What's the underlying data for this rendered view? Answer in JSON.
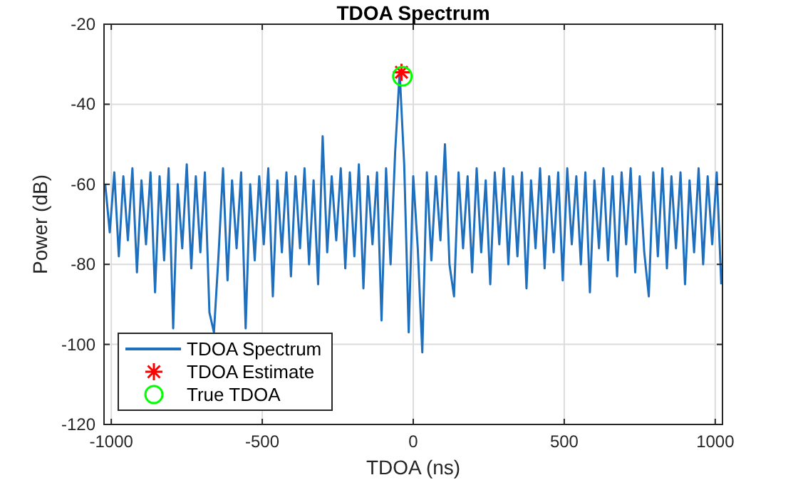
{
  "chart_data": {
    "type": "line",
    "title": "TDOA Spectrum",
    "xlabel": "TDOA (ns)",
    "ylabel": "Power (dB)",
    "xlim": [
      -1024,
      1024
    ],
    "ylim": [
      -120,
      -20
    ],
    "xticks": [
      -1000,
      -500,
      0,
      500,
      1000
    ],
    "yticks": [
      -120,
      -100,
      -80,
      -60,
      -40,
      -20
    ],
    "grid": true,
    "legend": "bottom left",
    "series": [
      {
        "name": "TDOA Spectrum",
        "color": "#1f6fbf",
        "marker": "none",
        "line_style": "solid",
        "x": [
          -1020,
          -1005,
          -990,
          -975,
          -960,
          -945,
          -930,
          -915,
          -900,
          -885,
          -870,
          -855,
          -840,
          -825,
          -810,
          -795,
          -780,
          -765,
          -750,
          -735,
          -720,
          -705,
          -690,
          -675,
          -660,
          -645,
          -630,
          -615,
          -600,
          -585,
          -570,
          -555,
          -540,
          -525,
          -510,
          -495,
          -480,
          -465,
          -450,
          -435,
          -420,
          -405,
          -390,
          -375,
          -360,
          -345,
          -330,
          -315,
          -300,
          -285,
          -270,
          -255,
          -240,
          -225,
          -210,
          -195,
          -180,
          -165,
          -150,
          -135,
          -120,
          -105,
          -90,
          -75,
          -60,
          -45,
          -30,
          -15,
          0,
          15,
          30,
          45,
          60,
          75,
          90,
          105,
          120,
          135,
          150,
          165,
          180,
          195,
          210,
          225,
          240,
          255,
          270,
          285,
          300,
          315,
          330,
          345,
          360,
          375,
          390,
          405,
          420,
          435,
          450,
          465,
          480,
          495,
          510,
          525,
          540,
          555,
          570,
          585,
          600,
          615,
          630,
          645,
          660,
          675,
          690,
          705,
          720,
          735,
          750,
          765,
          780,
          795,
          810,
          825,
          840,
          855,
          870,
          885,
          900,
          915,
          930,
          945,
          960,
          975,
          990,
          1005,
          1020
        ],
        "values": [
          -60,
          -72,
          -57,
          -78,
          -58,
          -74,
          -56,
          -82,
          -59,
          -75,
          -57,
          -87,
          -58,
          -79,
          -56,
          -96,
          -60,
          -76,
          -55,
          -81,
          -58,
          -77,
          -57,
          -92,
          -97,
          -78,
          -56,
          -84,
          -59,
          -76,
          -57,
          -96,
          -60,
          -79,
          -58,
          -75,
          -56,
          -88,
          -59,
          -77,
          -57,
          -83,
          -58,
          -76,
          -56,
          -80,
          -59,
          -85,
          -48,
          -77,
          -58,
          -74,
          -56,
          -81,
          -57,
          -78,
          -55,
          -86,
          -58,
          -75,
          -57,
          -94,
          -56,
          -80,
          -52,
          -32,
          -55,
          -97,
          -58,
          -76,
          -102,
          -57,
          -79,
          -58,
          -74,
          -50,
          -80,
          -88,
          -57,
          -76,
          -58,
          -82,
          -56,
          -77,
          -59,
          -85,
          -57,
          -75,
          -56,
          -80,
          -58,
          -78,
          -57,
          -86,
          -59,
          -76,
          -56,
          -81,
          -58,
          -77,
          -57,
          -84,
          -56,
          -75,
          -58,
          -80,
          -57,
          -87,
          -59,
          -76,
          -56,
          -79,
          -58,
          -83,
          -57,
          -75,
          -56,
          -82,
          -58,
          -77,
          -88,
          -57,
          -78,
          -56,
          -81,
          -58,
          -76,
          -57,
          -85,
          -59,
          -77,
          -56,
          -80,
          -58,
          -75,
          -57,
          -85
        ]
      },
      {
        "name": "TDOA Estimate",
        "type": "scatter",
        "color": "#ff0000",
        "marker": "cross",
        "x": [
          -39
        ],
        "values": [
          -32
        ]
      },
      {
        "name": "True TDOA",
        "type": "scatter",
        "color": "#00ff00",
        "marker": "circle",
        "x": [
          -36
        ],
        "values": [
          -33
        ]
      }
    ]
  }
}
